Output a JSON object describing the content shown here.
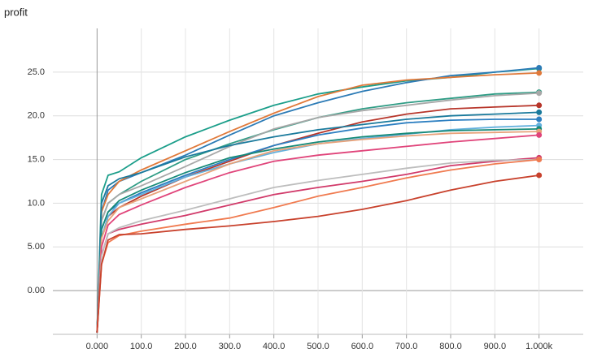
{
  "chart_data": {
    "type": "line",
    "title": "profit",
    "x": [
      0,
      10,
      25,
      50,
      100,
      200,
      300,
      400,
      500,
      600,
      700,
      800,
      900,
      1000
    ],
    "xlim": [
      -100,
      1100
    ],
    "ylim": [
      -5,
      30
    ],
    "grid": true,
    "xticks": [
      {
        "value": 0,
        "label": "0.000"
      },
      {
        "value": 100,
        "label": "100.0"
      },
      {
        "value": 200,
        "label": "200.0"
      },
      {
        "value": 300,
        "label": "300.0"
      },
      {
        "value": 400,
        "label": "400.0"
      },
      {
        "value": 500,
        "label": "500.0"
      },
      {
        "value": 600,
        "label": "600.0"
      },
      {
        "value": 700,
        "label": "700.0"
      },
      {
        "value": 800,
        "label": "800.0"
      },
      {
        "value": 900,
        "label": "900.0"
      },
      {
        "value": 1000,
        "label": "1.000k"
      }
    ],
    "yticks": [
      {
        "value": 0,
        "label": "0.00"
      },
      {
        "value": 5,
        "label": "5.00"
      },
      {
        "value": 10,
        "label": "10.0"
      },
      {
        "value": 15,
        "label": "15.0"
      },
      {
        "value": 20,
        "label": "20.0"
      },
      {
        "value": 25,
        "label": "25.0"
      }
    ],
    "series": [
      {
        "color": "#1b9e8a",
        "values": [
          -4.8,
          11,
          13.2,
          13.6,
          15.2,
          17.6,
          19.5,
          21.2,
          22.5,
          23.3,
          24.0,
          24.4,
          25.0,
          25.4
        ]
      },
      {
        "color": "#2c7bb6",
        "values": [
          -4.8,
          9,
          11.5,
          12.5,
          13.5,
          15.5,
          17.8,
          20.0,
          21.5,
          22.8,
          23.8,
          24.6,
          25.0,
          25.5
        ]
      },
      {
        "color": "#e0793a",
        "values": [
          -4.8,
          9,
          11,
          12.5,
          13.8,
          16.0,
          18.2,
          20.3,
          22.2,
          23.5,
          24.1,
          24.4,
          24.7,
          24.9
        ]
      },
      {
        "color": "#2f9c85",
        "values": [
          -4.8,
          8,
          10,
          11,
          12.5,
          15.0,
          16.8,
          18.4,
          19.8,
          20.8,
          21.5,
          22.0,
          22.5,
          22.7
        ]
      },
      {
        "color": "#a8a8a8",
        "values": [
          -4.8,
          8,
          10,
          11,
          12.0,
          14.2,
          16.5,
          18.5,
          19.8,
          20.6,
          21.2,
          21.8,
          22.3,
          22.6
        ]
      },
      {
        "color": "#b7352a",
        "values": [
          -4.8,
          6,
          8.5,
          9.5,
          10.8,
          13.0,
          14.8,
          16.6,
          18.0,
          19.3,
          20.2,
          20.8,
          21.0,
          21.2
        ]
      },
      {
        "color": "#1a7a9c",
        "values": [
          -4.8,
          10,
          12,
          12.8,
          13.5,
          15.3,
          16.6,
          17.6,
          18.4,
          19.0,
          19.6,
          20.0,
          20.2,
          20.4
        ]
      },
      {
        "color": "#2d7fc1",
        "values": [
          -4.8,
          7,
          9,
          10,
          11.2,
          13.2,
          15.0,
          16.6,
          17.8,
          18.6,
          19.2,
          19.5,
          19.6,
          19.6
        ]
      },
      {
        "color": "#62b0dd",
        "values": [
          -4.8,
          6,
          8.5,
          10,
          11.0,
          13.0,
          14.5,
          15.8,
          16.8,
          17.4,
          17.9,
          18.4,
          18.7,
          18.9
        ]
      },
      {
        "color": "#168a78",
        "values": [
          -4.8,
          7,
          9,
          10.3,
          11.5,
          13.5,
          15.2,
          16.2,
          17.0,
          17.6,
          18.0,
          18.3,
          18.4,
          18.5
        ]
      },
      {
        "color": "#e8a27a",
        "values": [
          -4.8,
          6,
          8,
          9.5,
          10.5,
          12.5,
          14.5,
          16.0,
          16.8,
          17.3,
          17.7,
          18.0,
          18.1,
          18.2
        ]
      },
      {
        "color": "#e0447a",
        "values": [
          -4.8,
          5,
          7.5,
          8.7,
          9.8,
          11.8,
          13.5,
          14.8,
          15.5,
          16.0,
          16.5,
          17.0,
          17.4,
          17.8
        ]
      },
      {
        "color": "#d13a6a",
        "values": [
          -4.8,
          4,
          6.5,
          7.0,
          7.6,
          8.6,
          9.8,
          11.0,
          11.8,
          12.5,
          13.3,
          14.3,
          14.8,
          15.2
        ]
      },
      {
        "color": "#bdbdbd",
        "values": [
          -4.8,
          4,
          6.5,
          7.2,
          8.0,
          9.2,
          10.5,
          11.8,
          12.6,
          13.3,
          14.0,
          14.6,
          14.9,
          15.0
        ]
      },
      {
        "color": "#f07a4f",
        "values": [
          -4.8,
          3,
          5.5,
          6.3,
          6.8,
          7.6,
          8.3,
          9.5,
          10.8,
          11.8,
          12.9,
          13.8,
          14.5,
          15.0
        ]
      },
      {
        "color": "#c8412c",
        "values": [
          -4.8,
          3,
          5.8,
          6.4,
          6.5,
          7.0,
          7.4,
          7.9,
          8.5,
          9.3,
          10.3,
          11.5,
          12.5,
          13.2
        ]
      }
    ]
  }
}
